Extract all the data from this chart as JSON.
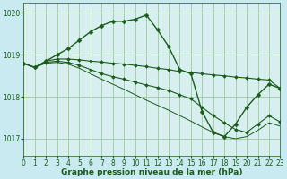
{
  "title": "Graphe pression niveau de la mer (hPa)",
  "background_color": "#c8eaf0",
  "plot_bg_color": "#d8eff0",
  "grid_color": "#a0c8a0",
  "line_color": "#1a5c1a",
  "xlim": [
    0,
    23
  ],
  "ylim": [
    1016.6,
    1020.25
  ],
  "yticks": [
    1017,
    1018,
    1019,
    1020
  ],
  "xticks": [
    0,
    1,
    2,
    3,
    4,
    5,
    6,
    7,
    8,
    9,
    10,
    11,
    12,
    13,
    14,
    15,
    16,
    17,
    18,
    19,
    20,
    21,
    22,
    23
  ],
  "lines": [
    {
      "y": [
        1018.8,
        1018.7,
        1018.85,
        1019.0,
        1019.15,
        1019.35,
        1019.55,
        1019.7,
        1019.8,
        1019.8,
        1019.85,
        1019.95,
        1019.6,
        1019.2,
        1018.65,
        1018.55,
        1017.65,
        1017.15,
        1017.05,
        1017.35,
        1017.75,
        1018.05,
        1018.3,
        1018.2
      ],
      "has_markers": true,
      "linewidth": 1.0,
      "markersize": 2.5
    },
    {
      "y": [
        1018.8,
        1018.7,
        1018.85,
        1018.9,
        1018.9,
        1018.88,
        1018.85,
        1018.83,
        1018.8,
        1018.78,
        1018.75,
        1018.72,
        1018.68,
        1018.65,
        1018.6,
        1018.58,
        1018.55,
        1018.52,
        1018.5,
        1018.47,
        1018.45,
        1018.42,
        1018.4,
        1018.2
      ],
      "has_markers": true,
      "linewidth": 0.8,
      "markersize": 2.0
    },
    {
      "y": [
        1018.8,
        1018.7,
        1018.82,
        1018.85,
        1018.82,
        1018.75,
        1018.65,
        1018.55,
        1018.48,
        1018.42,
        1018.35,
        1018.28,
        1018.22,
        1018.15,
        1018.05,
        1017.95,
        1017.75,
        1017.55,
        1017.38,
        1017.22,
        1017.15,
        1017.35,
        1017.55,
        1017.4
      ],
      "has_markers": true,
      "linewidth": 0.8,
      "markersize": 2.0
    },
    {
      "y": [
        1018.8,
        1018.7,
        1018.8,
        1018.82,
        1018.78,
        1018.68,
        1018.55,
        1018.42,
        1018.3,
        1018.18,
        1018.05,
        1017.92,
        1017.8,
        1017.68,
        1017.55,
        1017.42,
        1017.28,
        1017.15,
        1017.05,
        1017.0,
        1017.05,
        1017.2,
        1017.38,
        1017.3
      ],
      "has_markers": false,
      "linewidth": 0.7,
      "markersize": 0
    }
  ],
  "title_fontsize": 6.5,
  "tick_fontsize": 5.5
}
